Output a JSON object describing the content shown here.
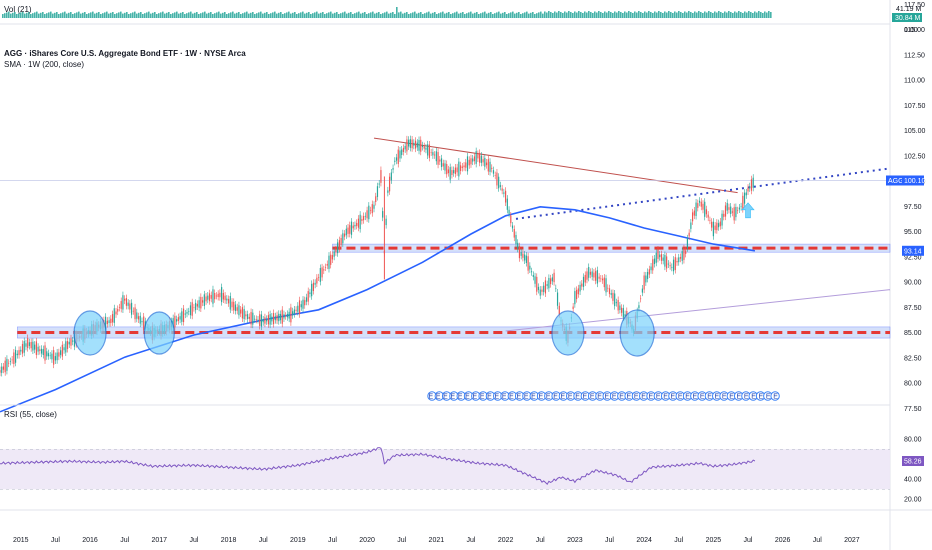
{
  "vol_legend": "Vol (21)",
  "vol_readout": {
    "top": "41.19 M",
    "bottom": "30.84 M"
  },
  "main_legend": {
    "title": "AGG · iShares Core U.S. Aggregate Bond ETF · 1W · NYSE Arca",
    "sma": "SMA · 1W (200, close)"
  },
  "rsi_legend": "RSI (55, close)",
  "price_tags": {
    "agg_symbol": "AGG",
    "agg_price": "100.10",
    "sma_value": "93.14",
    "rsi_value": "58.26"
  },
  "events_label": "EEEEEEEEEEEEEEEEEEEEEEEEEEEEEEEEEEEEEEEEEEEEEEEE",
  "colors": {
    "price_line": "#5b6fd6",
    "sma": "#2962ff",
    "support_red": "#e53935",
    "zone_fill": "#b3c7f7",
    "trend_red": "#c0504d",
    "circle_fill": "#7dd3fc",
    "circle_stroke": "#1e6fd9",
    "rsi_line": "#7e57c2",
    "rsi_band": "#ede7f6",
    "volume": "#26a69a",
    "arrow": "#7dd3fc",
    "dotted_trend": "#3346c4"
  },
  "chart_data": [
    {
      "type": "line",
      "name": "price",
      "x_ticks": [
        "2015",
        "Jul",
        "2016",
        "Jul",
        "2017",
        "Jul",
        "2018",
        "Jul",
        "2019",
        "Jul",
        "2020",
        "Jul",
        "2021",
        "Jul",
        "2022",
        "Jul",
        "2023",
        "Jul",
        "2024",
        "Jul",
        "2025",
        "Jul",
        "2026",
        "Jul",
        "2027"
      ],
      "y_ticks": [
        "0.00",
        "117.50",
        "115.00",
        "112.50",
        "110.00",
        "107.50",
        "105.00",
        "102.50",
        "100.00",
        "97.50",
        "95.00",
        "92.50",
        "90.00",
        "87.50",
        "85.00",
        "82.50",
        "80.00",
        "77.50"
      ],
      "ylim": [
        76.5,
        119
      ],
      "x": [
        2014.7,
        2014.9,
        2015.1,
        2015.3,
        2015.5,
        2015.7,
        2015.9,
        2016.1,
        2016.3,
        2016.5,
        2016.7,
        2016.9,
        2017.1,
        2017.3,
        2017.5,
        2017.7,
        2017.9,
        2018.1,
        2018.3,
        2018.5,
        2018.7,
        2018.9,
        2019.1,
        2019.3,
        2019.5,
        2019.7,
        2019.9,
        2020.1,
        2020.2,
        2020.25,
        2020.3,
        2020.4,
        2020.6,
        2020.8,
        2021.0,
        2021.2,
        2021.4,
        2021.6,
        2021.8,
        2022.0,
        2022.1,
        2022.2,
        2022.3,
        2022.5,
        2022.7,
        2022.8,
        2022.9,
        2023.0,
        2023.2,
        2023.4,
        2023.6,
        2023.8,
        2023.85,
        2024.0,
        2024.2,
        2024.4,
        2024.6,
        2024.7,
        2024.8,
        2024.9,
        2025.0,
        2025.1,
        2025.2,
        2025.3,
        2025.4,
        2025.5,
        2025.6
      ],
      "y": [
        81.2,
        82.5,
        84.0,
        83.2,
        82.5,
        84.0,
        84.8,
        85.6,
        86.2,
        88.3,
        86.5,
        85.0,
        85.5,
        86.5,
        87.5,
        88.5,
        88.8,
        87.5,
        86.5,
        86.2,
        86.5,
        86.8,
        88.0,
        90.5,
        92.5,
        95.0,
        96.0,
        97.5,
        100.5,
        93.0,
        99.0,
        102.0,
        103.8,
        103.5,
        102.5,
        100.8,
        101.5,
        102.5,
        101.3,
        98.5,
        95.5,
        93.0,
        92.3,
        89.0,
        90.5,
        86.2,
        84.5,
        88.5,
        91.0,
        90.3,
        88.0,
        86.0,
        85.2,
        90.0,
        92.8,
        91.5,
        93.0,
        96.5,
        98.0,
        97.0,
        95.3,
        95.8,
        97.5,
        96.8,
        97.5,
        99.2,
        100.1
      ]
    },
    {
      "type": "line",
      "name": "SMA · 1W (200, close)",
      "x": [
        2014.7,
        2015.5,
        2016.5,
        2017.5,
        2018.5,
        2019.3,
        2020.0,
        2020.8,
        2021.5,
        2022.0,
        2022.5,
        2023.0,
        2023.5,
        2024.0,
        2024.5,
        2025.0,
        2025.6
      ],
      "y": [
        77.2,
        79.4,
        82.6,
        84.8,
        86.3,
        87.3,
        89.3,
        92.0,
        94.8,
        96.6,
        97.5,
        97.2,
        96.4,
        95.4,
        94.6,
        93.8,
        93.14
      ]
    },
    {
      "type": "line",
      "name": "RSI (55, close)",
      "y_ticks": [
        "80.00",
        "60.00",
        "40.00",
        "20.00"
      ],
      "ylim": [
        17,
        86
      ],
      "x": [
        2014.7,
        2015.2,
        2015.7,
        2016.2,
        2016.5,
        2016.9,
        2017.5,
        2018.0,
        2018.5,
        2019.0,
        2019.5,
        2020.0,
        2020.2,
        2020.25,
        2020.4,
        2020.8,
        2021.2,
        2021.6,
        2022.0,
        2022.3,
        2022.6,
        2022.8,
        2023.0,
        2023.3,
        2023.6,
        2023.8,
        2024.1,
        2024.5,
        2024.8,
        2025.0,
        2025.3,
        2025.6
      ],
      "y": [
        56,
        57,
        58,
        57,
        58,
        53,
        54,
        52,
        50,
        54,
        61,
        67,
        72,
        56,
        64,
        65,
        60,
        56,
        54,
        45,
        36,
        42,
        38,
        49,
        44,
        37,
        52,
        54,
        56,
        53,
        55,
        58.26
      ]
    },
    {
      "type": "bar",
      "name": "Vol (21)",
      "ylim": [
        0,
        50
      ]
    }
  ]
}
